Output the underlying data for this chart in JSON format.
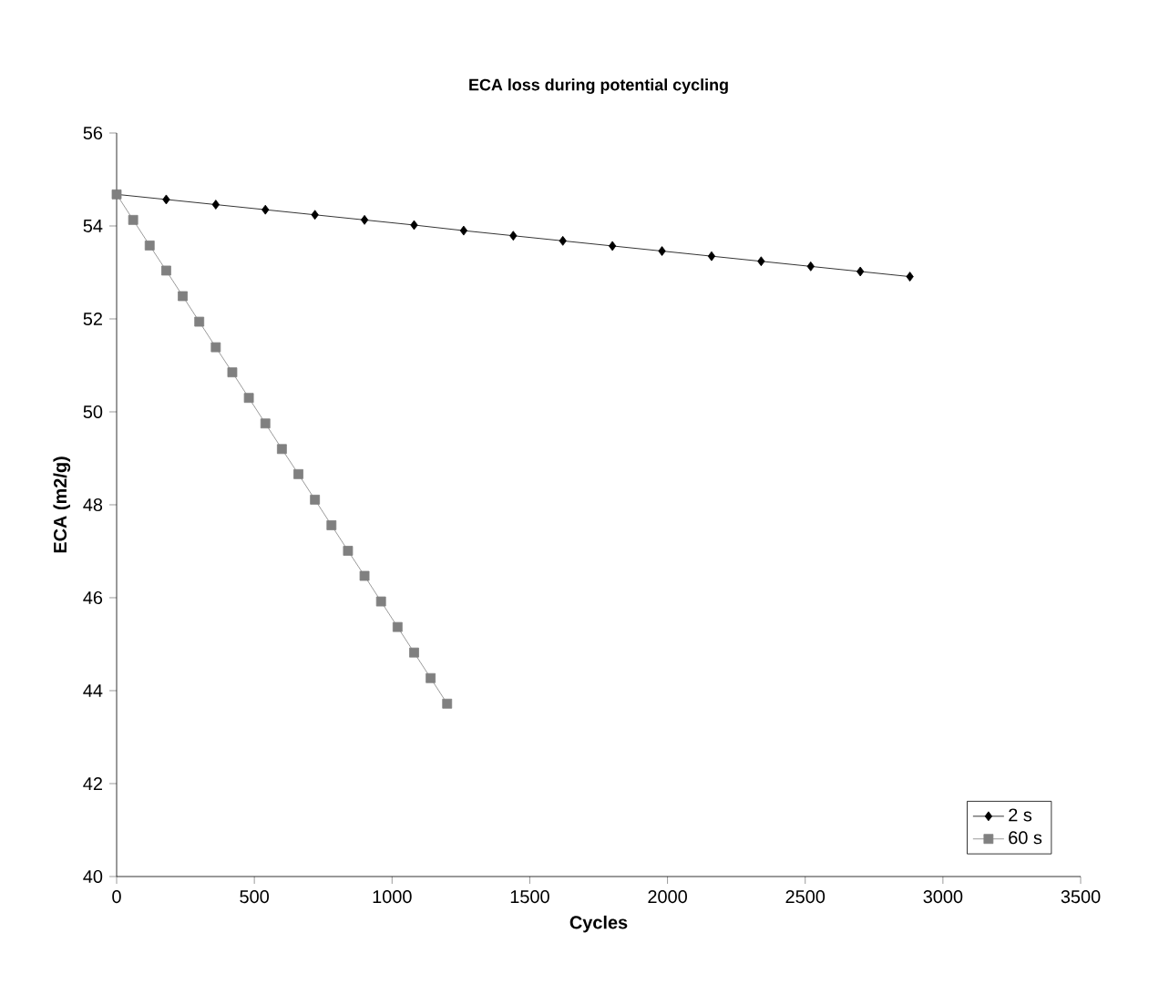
{
  "chart_data": {
    "type": "line",
    "title": "ECA loss during potential cycling",
    "xlabel": "Cycles",
    "ylabel": "ECA (m2/g)",
    "xlim": [
      0,
      3500
    ],
    "xticks": [
      0,
      500,
      1000,
      1500,
      2000,
      2500,
      3000,
      3500
    ],
    "ylim": [
      40,
      56
    ],
    "yticks": [
      40,
      42,
      44,
      46,
      48,
      50,
      52,
      54,
      56
    ],
    "grid": false,
    "legend": "bottom right",
    "series": [
      {
        "name": "2 s",
        "color": "#000000",
        "marker": "diamond",
        "x": [
          0,
          180,
          360,
          540,
          720,
          900,
          1080,
          1260,
          1440,
          1620,
          1800,
          1980,
          2160,
          2340,
          2520,
          2700,
          2880
        ],
        "values": [
          54.68,
          54.57,
          54.46,
          54.35,
          54.24,
          54.13,
          54.02,
          53.9,
          53.79,
          53.68,
          53.57,
          53.46,
          53.35,
          53.24,
          53.13,
          53.02,
          52.91
        ]
      },
      {
        "name": "60 s",
        "color": "#808080",
        "marker": "square",
        "x": [
          0,
          60,
          120,
          180,
          240,
          300,
          360,
          420,
          480,
          540,
          600,
          660,
          720,
          780,
          840,
          900,
          960,
          1020,
          1080,
          1140,
          1200
        ],
        "values": [
          54.68,
          54.13,
          53.58,
          53.04,
          52.49,
          51.94,
          51.39,
          50.85,
          50.3,
          49.75,
          49.2,
          48.66,
          48.11,
          47.56,
          47.01,
          46.47,
          45.92,
          45.37,
          44.82,
          44.27,
          43.72
        ]
      }
    ]
  }
}
